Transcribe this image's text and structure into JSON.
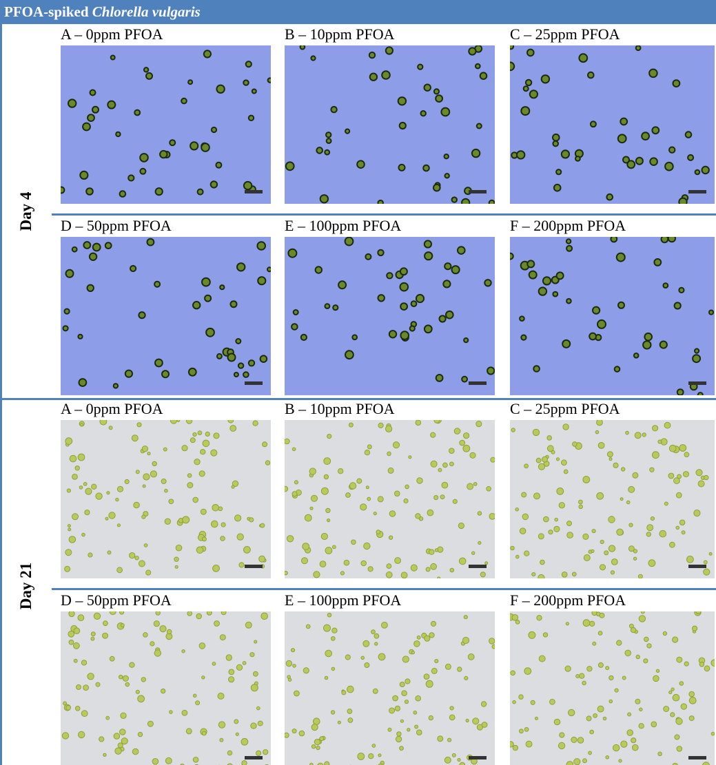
{
  "header": {
    "title_prefix": "PFOA-spiked",
    "title_species": "Chlorella vulgaris"
  },
  "sections": [
    {
      "label": "Day 4",
      "panels": [
        {
          "label": "A – 0ppm PFOA"
        },
        {
          "label": "B – 10ppm PFOA"
        },
        {
          "label": "C – 25ppm PFOA"
        },
        {
          "label": "D – 50ppm PFOA"
        },
        {
          "label": "E – 100ppm PFOA"
        },
        {
          "label": "F – 200ppm PFOA"
        }
      ]
    },
    {
      "label": "Day 21",
      "panels": [
        {
          "label": "A – 0ppm PFOA"
        },
        {
          "label": "B – 10ppm PFOA"
        },
        {
          "label": "C – 25ppm PFOA"
        },
        {
          "label": "D – 50ppm PFOA"
        },
        {
          "label": "E – 100ppm PFOA"
        },
        {
          "label": "F – 200ppm PFOA"
        }
      ]
    }
  ]
}
